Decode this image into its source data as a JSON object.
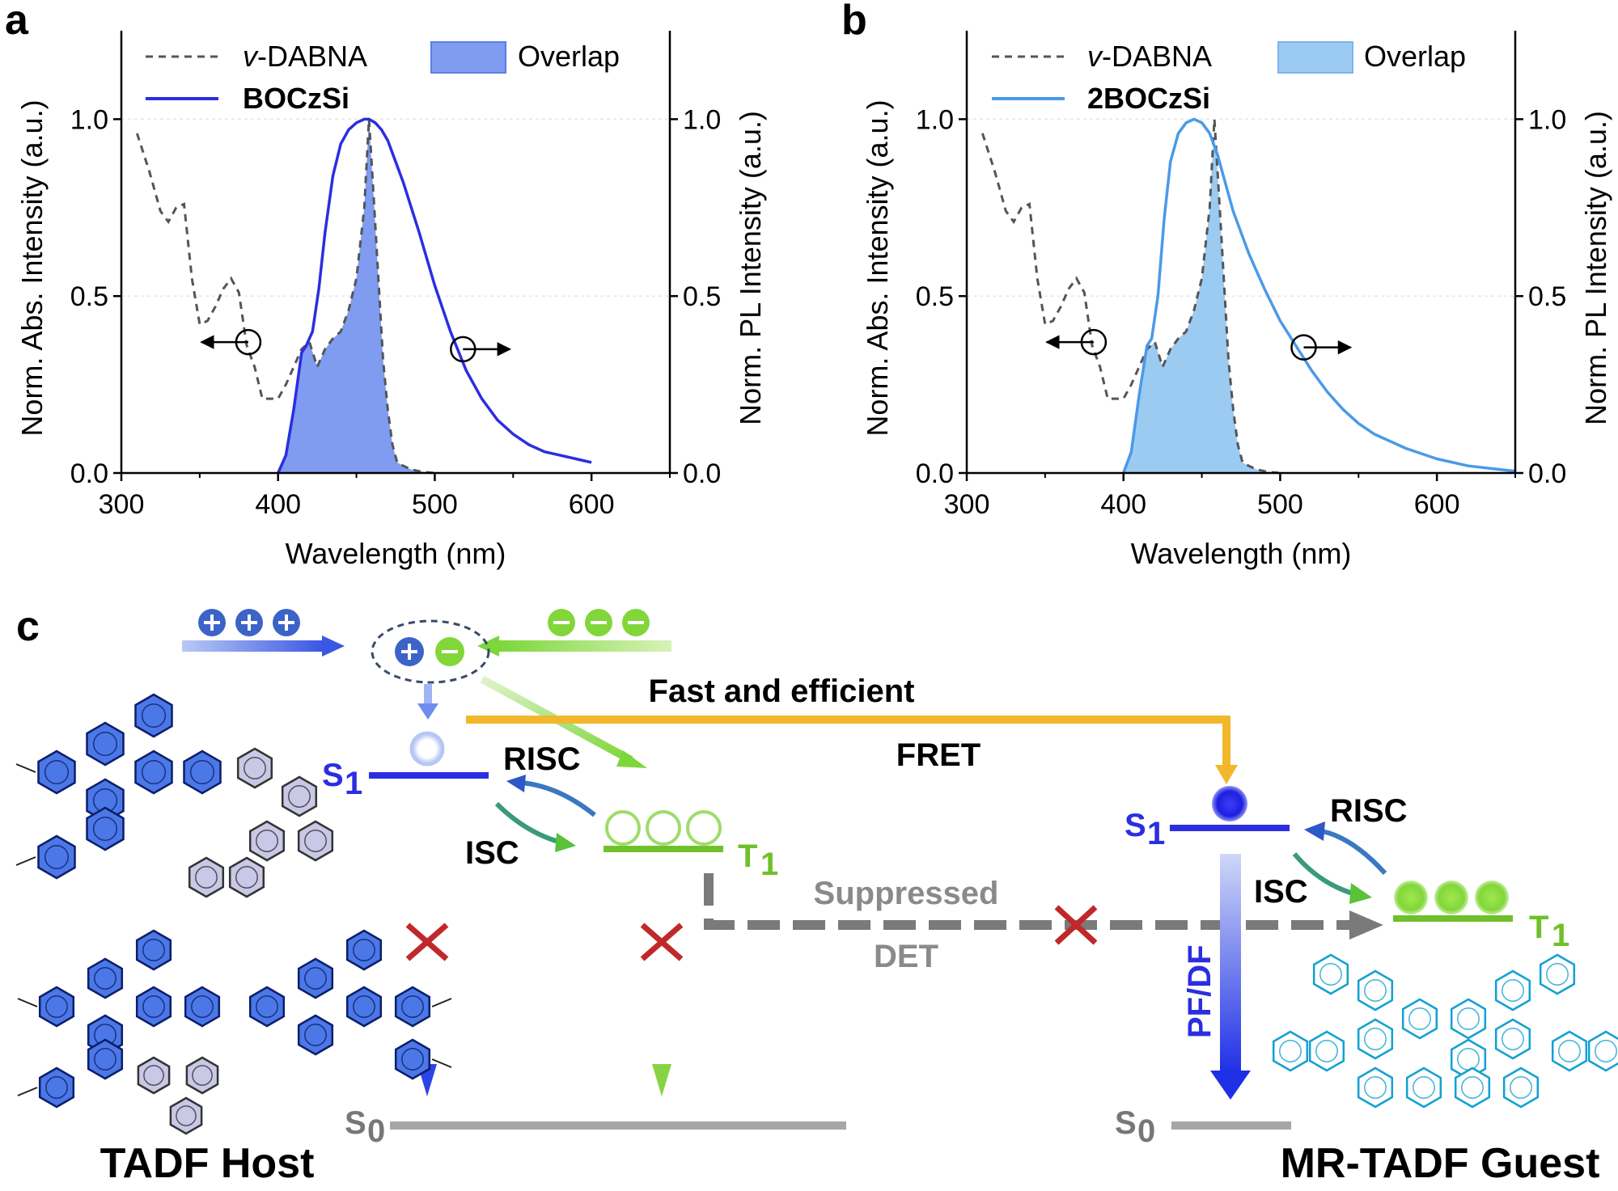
{
  "chart_data": [
    {
      "panel": "a",
      "type": "line",
      "xlabel": "Wavelength (nm)",
      "ylabel_left": "Norm. Abs. Intensity (a.u.)",
      "ylabel_right": "Norm. PL Intensity (a.u.)",
      "xlim": [
        300,
        650
      ],
      "ylim": [
        0,
        1.25
      ],
      "xticks": [
        "300",
        "400",
        "500",
        "600"
      ],
      "yticks": [
        "0.0",
        "0.5",
        "1.0"
      ],
      "legend": {
        "abs": "v-DABNA",
        "pl": "BOCzSi",
        "overlap": "Overlap"
      },
      "pl_color": "#2b2ee0",
      "overlap_color": "#7f9cf0",
      "series": [
        {
          "name": "v-DABNA",
          "style": "dashed",
          "color": "#555555",
          "x": [
            310,
            318,
            325,
            330,
            335,
            340,
            345,
            350,
            355,
            360,
            365,
            370,
            375,
            380,
            385,
            390,
            395,
            400,
            405,
            410,
            415,
            420,
            425,
            430,
            435,
            440,
            445,
            450,
            455,
            458,
            461,
            464,
            467,
            470,
            473,
            476,
            480,
            485,
            490,
            495,
            500
          ],
          "y": [
            0.96,
            0.85,
            0.74,
            0.71,
            0.75,
            0.76,
            0.55,
            0.42,
            0.43,
            0.47,
            0.52,
            0.55,
            0.51,
            0.36,
            0.3,
            0.21,
            0.21,
            0.21,
            0.25,
            0.3,
            0.35,
            0.37,
            0.3,
            0.35,
            0.38,
            0.4,
            0.46,
            0.55,
            0.75,
            1.0,
            0.78,
            0.55,
            0.32,
            0.18,
            0.08,
            0.03,
            0.02,
            0.01,
            0.005,
            0.002,
            0.0
          ]
        },
        {
          "name": "BOCzSi",
          "style": "solid",
          "color": "#2b2ee0",
          "x": [
            400,
            405,
            410,
            415,
            418,
            422,
            426,
            430,
            435,
            440,
            445,
            450,
            455,
            458,
            462,
            466,
            470,
            475,
            480,
            490,
            500,
            510,
            520,
            530,
            540,
            550,
            560,
            570,
            580,
            590,
            600
          ],
          "y": [
            0.0,
            0.05,
            0.18,
            0.34,
            0.36,
            0.4,
            0.52,
            0.68,
            0.84,
            0.93,
            0.97,
            0.99,
            1.0,
            1.0,
            0.99,
            0.97,
            0.94,
            0.88,
            0.82,
            0.68,
            0.53,
            0.4,
            0.29,
            0.21,
            0.15,
            0.11,
            0.08,
            0.06,
            0.05,
            0.04,
            0.03
          ]
        }
      ]
    },
    {
      "panel": "b",
      "type": "line",
      "xlabel": "Wavelength (nm)",
      "ylabel_left": "Norm. Abs. Intensity (a.u.)",
      "ylabel_right": "Norm. PL Intensity (a.u.)",
      "xlim": [
        300,
        650
      ],
      "ylim": [
        0,
        1.25
      ],
      "xticks": [
        "300",
        "400",
        "500",
        "600"
      ],
      "yticks": [
        "0.0",
        "0.5",
        "1.0"
      ],
      "legend": {
        "abs": "v-DABNA",
        "pl": "2BOCzSi",
        "overlap": "Overlap"
      },
      "pl_color": "#4a9ae8",
      "overlap_color": "#9ccbf2",
      "series": [
        {
          "name": "v-DABNA",
          "style": "dashed",
          "color": "#555555",
          "x": [
            310,
            318,
            325,
            330,
            335,
            340,
            345,
            350,
            355,
            360,
            365,
            370,
            375,
            380,
            385,
            390,
            395,
            400,
            405,
            410,
            415,
            420,
            425,
            430,
            435,
            440,
            445,
            450,
            455,
            458,
            461,
            464,
            467,
            470,
            473,
            476,
            480,
            485,
            490,
            495,
            500
          ],
          "y": [
            0.96,
            0.85,
            0.74,
            0.71,
            0.75,
            0.76,
            0.55,
            0.42,
            0.43,
            0.47,
            0.52,
            0.55,
            0.51,
            0.36,
            0.3,
            0.21,
            0.21,
            0.21,
            0.25,
            0.3,
            0.35,
            0.37,
            0.3,
            0.35,
            0.38,
            0.4,
            0.46,
            0.55,
            0.75,
            1.0,
            0.78,
            0.55,
            0.32,
            0.18,
            0.08,
            0.03,
            0.02,
            0.01,
            0.005,
            0.002,
            0.0
          ]
        },
        {
          "name": "2BOCzSi",
          "style": "solid",
          "color": "#4a9ae8",
          "x": [
            400,
            405,
            410,
            415,
            418,
            422,
            426,
            430,
            435,
            440,
            445,
            450,
            455,
            460,
            465,
            470,
            480,
            490,
            500,
            510,
            520,
            530,
            540,
            550,
            560,
            580,
            600,
            620,
            640,
            650
          ],
          "y": [
            0.0,
            0.06,
            0.22,
            0.36,
            0.38,
            0.5,
            0.72,
            0.88,
            0.96,
            0.99,
            1.0,
            0.99,
            0.96,
            0.9,
            0.82,
            0.74,
            0.62,
            0.52,
            0.43,
            0.36,
            0.29,
            0.23,
            0.18,
            0.14,
            0.11,
            0.07,
            0.04,
            0.02,
            0.01,
            0.005
          ]
        }
      ]
    }
  ],
  "diagram": {
    "panel_letter": "c",
    "fast_label": "Fast and efficient",
    "fret_label": "FRET",
    "host_s1": "S",
    "host_t1": "T",
    "guest_s1": "S",
    "guest_t1": "T",
    "s0_host": "S",
    "s0_guest": "S",
    "sub_1": "1",
    "sub_0": "0",
    "risc_host": "RISC",
    "isc_host": "ISC",
    "risc_guest": "RISC",
    "isc_guest": "ISC",
    "suppressed": "Suppressed",
    "det": "DET",
    "pf_df": "PF/DF",
    "host_label": "TADF Host",
    "guest_label": "MR-TADF Guest"
  }
}
